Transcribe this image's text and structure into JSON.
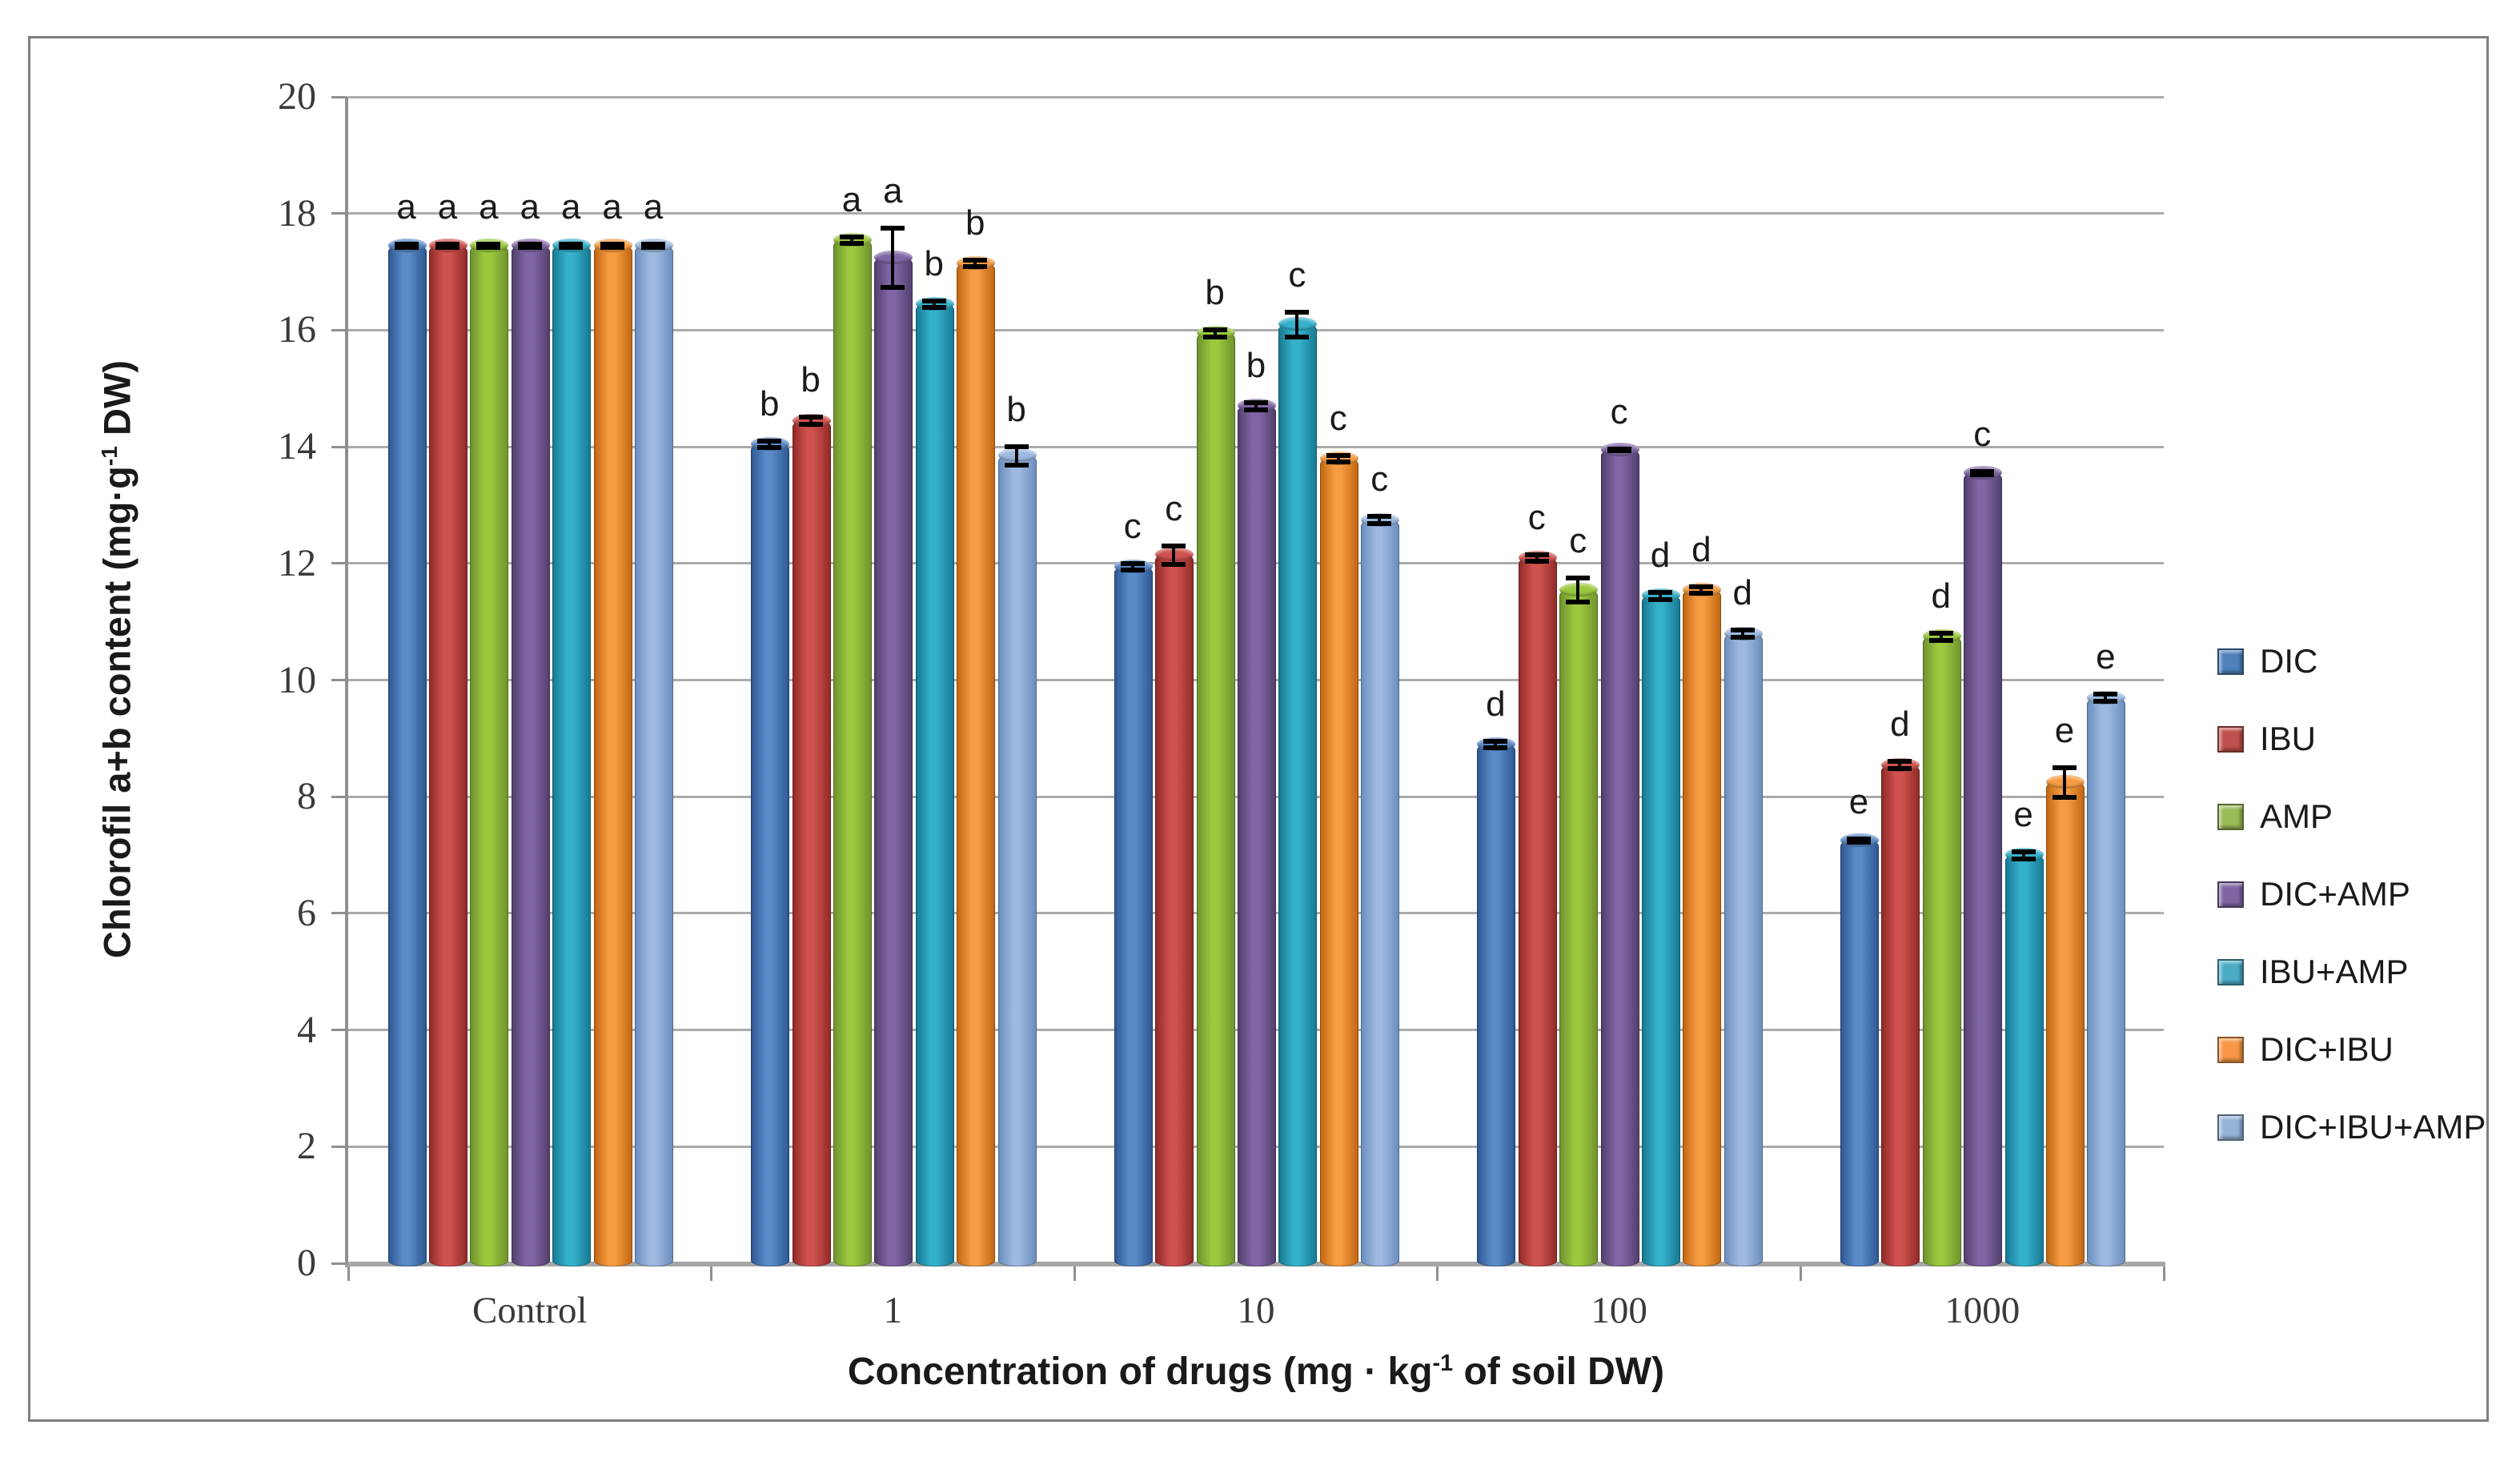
{
  "figure": {
    "border_color": "#7f7f7f",
    "background": "#ffffff"
  },
  "chart_data": {
    "type": "bar",
    "title": "",
    "xlabel": "Concentration of drugs (mg · kg⁻¹ of soil DW)",
    "ylabel": "Chlorofil a+b content (mg·g⁻¹ DW)",
    "xlabel_parts": [
      "Concentration of drugs (mg · kg",
      "-1",
      " of soil DW)"
    ],
    "ylabel_parts": [
      "Chlorofil a+b content  (mg·g",
      "-1",
      " DW)"
    ],
    "ylim": [
      0,
      20
    ],
    "yticks": [
      0,
      2,
      4,
      6,
      8,
      10,
      12,
      14,
      16,
      18,
      20
    ],
    "grid": true,
    "gridline_color": "#ababab",
    "legend_position": "right",
    "categories": [
      "Control",
      "1",
      "10",
      "100",
      "1000"
    ],
    "series": [
      {
        "name": "DIC",
        "color": "#4F81BD",
        "gradient": [
          "#2E5994",
          "#5A8AC8"
        ],
        "values": [
          17.5,
          14.1,
          12.0,
          8.95,
          7.3
        ],
        "errors": [
          0.07,
          0.1,
          0.1,
          0.1,
          0.07
        ],
        "letters": [
          "a",
          "b",
          "c",
          "d",
          "e"
        ]
      },
      {
        "name": "IBU",
        "color": "#C0504D",
        "gradient": [
          "#922B28",
          "#D0524E"
        ],
        "values": [
          17.5,
          14.5,
          12.2,
          12.15,
          8.6
        ],
        "errors": [
          0.07,
          0.1,
          0.2,
          0.1,
          0.1
        ],
        "letters": [
          "a",
          "b",
          "c",
          "c",
          "d"
        ]
      },
      {
        "name": "AMP",
        "color": "#9BBB59",
        "gradient": [
          "#6F942E",
          "#9CC83E"
        ],
        "values": [
          17.5,
          17.6,
          16.0,
          11.6,
          10.8
        ],
        "errors": [
          0.07,
          0.1,
          0.1,
          0.25,
          0.1
        ],
        "letters": [
          "a",
          "a",
          "b",
          "c",
          "d"
        ]
      },
      {
        "name": "DIC+AMP",
        "color": "#8064A2",
        "gradient": [
          "#53406E",
          "#8166A5"
        ],
        "values": [
          17.5,
          17.3,
          14.75,
          14.0,
          13.6
        ],
        "errors": [
          0.07,
          0.55,
          0.1,
          0.05,
          0.07
        ],
        "letters": [
          "a",
          "a",
          "b",
          "c",
          "c"
        ]
      },
      {
        "name": "IBU+AMP",
        "color": "#4BACC6",
        "gradient": [
          "#177A93",
          "#35B1CB"
        ],
        "values": [
          17.5,
          16.5,
          16.15,
          11.5,
          7.05
        ],
        "errors": [
          0.07,
          0.1,
          0.25,
          0.1,
          0.1
        ],
        "letters": [
          "a",
          "b",
          "c",
          "d",
          "e"
        ]
      },
      {
        "name": "DIC+IBU",
        "color": "#F79646",
        "gradient": [
          "#C16812",
          "#F79C42"
        ],
        "values": [
          17.5,
          17.2,
          13.85,
          11.6,
          8.3
        ],
        "errors": [
          0.07,
          0.1,
          0.1,
          0.1,
          0.3
        ],
        "letters": [
          "a",
          "b",
          "c",
          "d",
          "e"
        ]
      },
      {
        "name": "DIC+IBU+AMP",
        "color": "#95B3D7",
        "gradient": [
          "#6C8EBF",
          "#9DB9DF"
        ],
        "values": [
          17.5,
          13.9,
          12.8,
          10.85,
          9.75
        ],
        "errors": [
          0.07,
          0.2,
          0.1,
          0.1,
          0.1
        ],
        "letters": [
          "a",
          "b",
          "c",
          "d",
          "e"
        ]
      }
    ]
  }
}
